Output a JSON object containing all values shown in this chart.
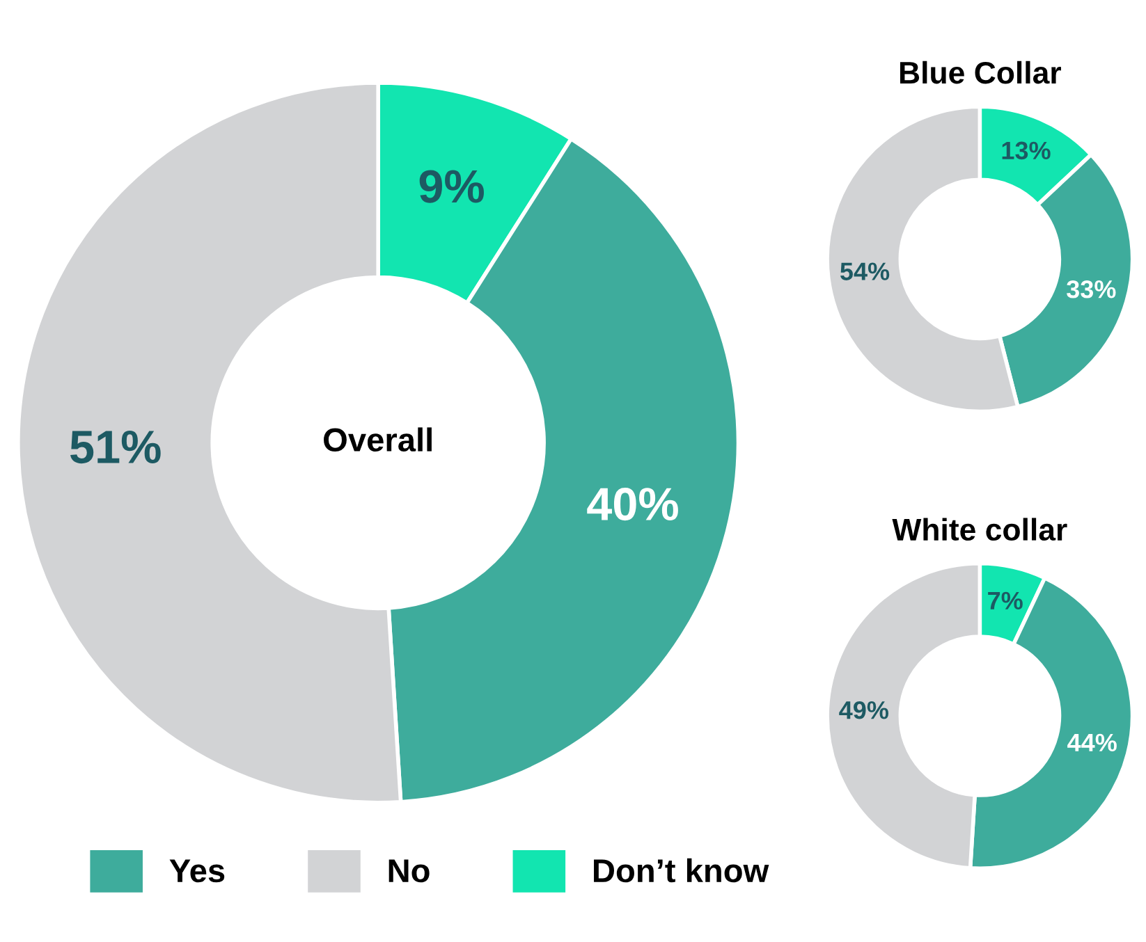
{
  "chart_data": [
    {
      "type": "donut",
      "title": "Overall",
      "categories": [
        "Don’t know",
        "Yes",
        "No"
      ],
      "values": [
        9,
        40,
        51
      ],
      "colors": [
        "#12e5b0",
        "#3eac9c",
        "#d2d3d5"
      ],
      "value_labels": [
        "9%",
        "40%",
        "51%"
      ],
      "legend": "bottom"
    },
    {
      "type": "donut",
      "title": "Blue Collar",
      "categories": [
        null,
        null,
        null
      ],
      "values": [
        13,
        33,
        54
      ],
      "colors": [
        "#12e5b0",
        "#3eac9c",
        "#d2d3d5"
      ],
      "value_labels": [
        "13%",
        "33%",
        "54%"
      ]
    },
    {
      "type": "donut",
      "title": "White collar",
      "categories": [
        null,
        null,
        null
      ],
      "values": [
        7,
        44,
        49
      ],
      "colors": [
        "#12e5b0",
        "#3eac9c",
        "#d2d3d5"
      ],
      "value_labels": [
        "7%",
        "44%",
        "49%"
      ]
    }
  ]
}
